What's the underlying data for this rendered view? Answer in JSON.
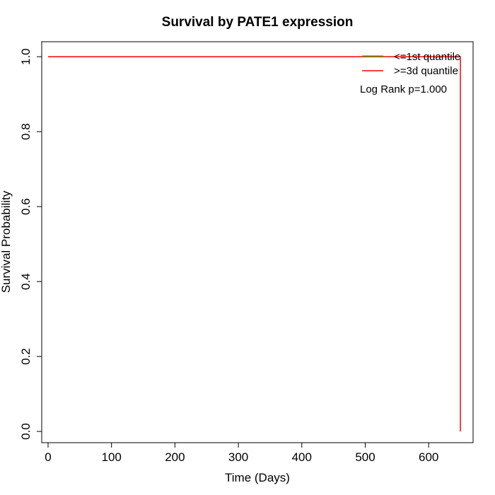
{
  "chart_data": {
    "type": "line",
    "title": "Survival by PATE1 expression",
    "xlabel": "Time (Days)",
    "ylabel": "Survival Probability",
    "xlim": [
      -10,
      670
    ],
    "ylim": [
      -0.03,
      1.04
    ],
    "x_ticks": [
      0,
      100,
      200,
      300,
      400,
      500,
      600
    ],
    "y_ticks": [
      0.0,
      0.2,
      0.4,
      0.6,
      0.8,
      1.0
    ],
    "x_tick_labels": [
      "0",
      "100",
      "200",
      "300",
      "400",
      "500",
      "600"
    ],
    "y_tick_labels": [
      "0.0",
      "0.2",
      "0.4",
      "0.6",
      "0.8",
      "1.0"
    ],
    "grid": false,
    "legend_position": "top-right",
    "series": [
      {
        "name": "<=1st quantile",
        "color": "#00ff00",
        "x": [
          0,
          650
        ],
        "y": [
          1.0,
          1.0
        ]
      },
      {
        "name": ">=3d quantile",
        "color": "#ff0000",
        "x": [
          0,
          650,
          650
        ],
        "y": [
          1.0,
          1.0,
          0.0
        ]
      }
    ],
    "annotation": "Log Rank p=1.000"
  }
}
